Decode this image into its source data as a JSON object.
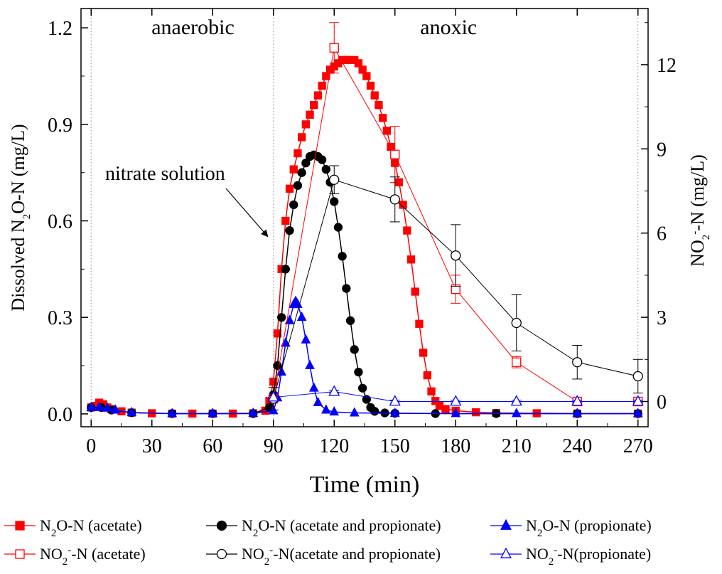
{
  "chart_data": {
    "type": "scatter",
    "xlabel": "Time (min)",
    "ylabel_left_parts": [
      "Dissolved N",
      "2",
      "O-N (mg/L)"
    ],
    "ylabel_right_parts": [
      "NO",
      "2",
      "-",
      "-N (mg/L)"
    ],
    "xlim": [
      -5,
      275
    ],
    "ylim_left": [
      -0.04,
      1.26
    ],
    "ylim_right": [
      -0.9,
      14.0
    ],
    "x_ticks": [
      0,
      30,
      60,
      90,
      120,
      150,
      180,
      210,
      240,
      270
    ],
    "x_tick_labels": [
      "0",
      "30",
      "60",
      "90",
      "120",
      "150",
      "180",
      "210",
      "240",
      "270"
    ],
    "y_left_ticks": [
      0.0,
      0.3,
      0.6,
      0.9,
      1.2
    ],
    "y_left_tick_labels": [
      "0.0",
      "0.3",
      "0.6",
      "0.9",
      "1.2"
    ],
    "y_right_ticks": [
      0,
      3,
      6,
      9,
      12
    ],
    "y_right_tick_labels": [
      "0",
      "3",
      "6",
      "9",
      "12"
    ],
    "phase_lines_x": [
      0,
      90,
      270
    ],
    "phase_labels": [
      {
        "text": "anaerobic",
        "x": 45
      },
      {
        "text": "anoxic",
        "x": 180
      }
    ],
    "annotation": {
      "text": "nitrate solution",
      "arrow_to": [
        90,
        0.6
      ]
    },
    "n2o_series": [
      {
        "name": "N2O-N (acetate)",
        "color": "#ff0000",
        "marker": "square-filled",
        "x": [
          0,
          2,
          4,
          6,
          8,
          10,
          15,
          20,
          30,
          40,
          50,
          60,
          70,
          80,
          86,
          88,
          90,
          92,
          94,
          96,
          98,
          100,
          102,
          104,
          106,
          108,
          110,
          112,
          114,
          116,
          118,
          120,
          122,
          124,
          126,
          128,
          130,
          132,
          134,
          136,
          138,
          140,
          142,
          144,
          146,
          148,
          150,
          152,
          154,
          156,
          158,
          160,
          162,
          164,
          166,
          168,
          170,
          172,
          175,
          180,
          190,
          200,
          220,
          240,
          270
        ],
        "y": [
          0.02,
          0.025,
          0.035,
          0.03,
          0.02,
          0.015,
          0.008,
          0.004,
          0.002,
          0.001,
          0.001,
          0.001,
          0.001,
          0.002,
          0.01,
          0.04,
          0.1,
          0.25,
          0.45,
          0.6,
          0.7,
          0.76,
          0.81,
          0.86,
          0.9,
          0.93,
          0.96,
          0.99,
          1.02,
          1.05,
          1.07,
          1.08,
          1.09,
          1.1,
          1.1,
          1.1,
          1.1,
          1.09,
          1.07,
          1.05,
          1.02,
          0.99,
          0.96,
          0.92,
          0.88,
          0.83,
          0.78,
          0.72,
          0.65,
          0.57,
          0.48,
          0.38,
          0.28,
          0.19,
          0.12,
          0.07,
          0.04,
          0.025,
          0.015,
          0.01,
          0.005,
          0.003,
          0.002,
          0.001,
          0.001
        ]
      },
      {
        "name": "N2O-N (acetate and propionate)",
        "color": "#000000",
        "marker": "circle-filled",
        "x": [
          0,
          5,
          10,
          20,
          40,
          60,
          80,
          88,
          90,
          92,
          94,
          96,
          98,
          100,
          102,
          104,
          106,
          108,
          110,
          112,
          114,
          116,
          118,
          120,
          122,
          124,
          126,
          128,
          130,
          132,
          134,
          136,
          138,
          140,
          145,
          150,
          170,
          200,
          240,
          270
        ],
        "y": [
          0.02,
          0.02,
          0.012,
          0.004,
          0.001,
          0.001,
          0.001,
          0.02,
          0.06,
          0.15,
          0.3,
          0.45,
          0.57,
          0.65,
          0.71,
          0.75,
          0.78,
          0.8,
          0.805,
          0.8,
          0.79,
          0.76,
          0.72,
          0.66,
          0.58,
          0.49,
          0.39,
          0.29,
          0.2,
          0.13,
          0.08,
          0.045,
          0.02,
          0.008,
          0.003,
          0.002,
          0.001,
          0.001,
          0.001,
          0.001
        ]
      },
      {
        "name": "N2O-N (propionate)",
        "color": "#0000ff",
        "marker": "triangle-filled",
        "x": [
          0,
          4,
          8,
          12,
          20,
          40,
          60,
          80,
          90,
          92,
          94,
          96,
          98,
          100,
          101,
          102,
          104,
          106,
          108,
          110,
          112,
          116,
          120,
          130,
          150,
          180,
          210,
          240,
          270
        ],
        "y": [
          0.02,
          0.02,
          0.018,
          0.012,
          0.004,
          0.001,
          0.001,
          0.002,
          0.01,
          0.05,
          0.13,
          0.22,
          0.29,
          0.34,
          0.35,
          0.34,
          0.3,
          0.23,
          0.15,
          0.08,
          0.035,
          0.012,
          0.006,
          0.003,
          0.002,
          0.001,
          0.001,
          0.001,
          0.001
        ]
      }
    ],
    "no2_series": [
      {
        "name": "NO2--N (acetate)",
        "color": "#ff0000",
        "marker": "square-open",
        "x": [
          90,
          120,
          150,
          180,
          210,
          240,
          270
        ],
        "y": [
          0.1,
          12.6,
          8.8,
          4.0,
          1.4,
          0.0,
          0.0
        ],
        "err": [
          0.1,
          0.9,
          1.0,
          0.5,
          0.2,
          0.05,
          0.05
        ]
      },
      {
        "name": "NO2--N(acetate and propionate)",
        "color": "#000000",
        "marker": "circle-open",
        "x": [
          90,
          120,
          150,
          180,
          210,
          240,
          270
        ],
        "y": [
          0.1,
          7.9,
          7.2,
          5.2,
          2.8,
          1.4,
          0.9
        ],
        "err": [
          0.4,
          0.5,
          0.8,
          1.1,
          1.0,
          0.6,
          0.6
        ]
      },
      {
        "name": "NO2--N(propionate)",
        "color": "#0000ff",
        "marker": "triangle-open",
        "x": [
          90,
          120,
          150,
          180,
          210,
          240,
          270
        ],
        "y": [
          0.15,
          0.35,
          0.0,
          0.0,
          0.0,
          0.0,
          0.0
        ],
        "err": [
          0.05,
          0.05,
          0.05,
          0.05,
          0.05,
          0.05,
          0.05
        ]
      }
    ],
    "legend": {
      "placement": "bottom",
      "rows": [
        [
          {
            "parts": [
              "N",
              "2",
              "",
              "O-N (acetate)"
            ],
            "series": "n2o",
            "idx": 0
          },
          {
            "parts": [
              "N",
              "2",
              "",
              "O-N (acetate and propionate)"
            ],
            "series": "n2o",
            "idx": 1
          },
          {
            "parts": [
              "N",
              "2",
              "",
              "O-N (propionate)"
            ],
            "series": "n2o",
            "idx": 2
          }
        ],
        [
          {
            "parts": [
              "NO",
              "2",
              "-",
              "-N (acetate)"
            ],
            "series": "no2",
            "idx": 0
          },
          {
            "parts": [
              "NO",
              "2",
              "-",
              "-N(acetate and propionate)"
            ],
            "series": "no2",
            "idx": 1
          },
          {
            "parts": [
              "NO",
              "2",
              "-",
              "-N(propionate)"
            ],
            "series": "no2",
            "idx": 2
          }
        ]
      ]
    }
  }
}
